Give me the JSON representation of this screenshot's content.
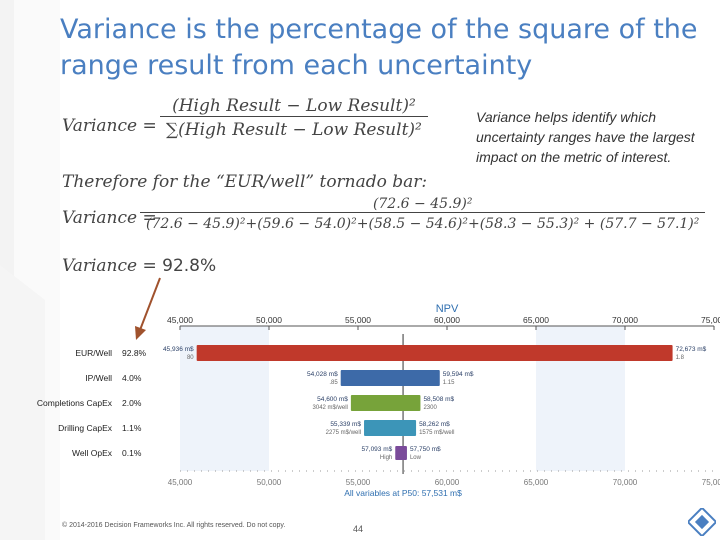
{
  "slide": {
    "title": "Variance is the percentage of the square of the range result from each uncertainty",
    "note": "Variance helps identify which uncertainty ranges have the largest impact on the metric of interest.",
    "eq1_lhs": "Variance =",
    "eq1_num": "(High Result − Low Result)²",
    "eq1_den": "∑(High Result − Low Result)²",
    "eq2": "Therefore for the “EUR/well” tornado bar:",
    "eq3_lhs": "Variance =",
    "eq3_num": "(72.6 − 45.9)²",
    "eq3_den": "(72.6 − 45.9)²+(59.6 − 54.0)²+(58.5 − 54.6)²+(58.3 − 55.3)² + (57.7 − 57.1)²",
    "eq4_lhs": "Variance = ",
    "eq4_val": "92.8%",
    "footer": "© 2014-2016 Decision Frameworks Inc. All rights reserved. Do not copy.",
    "page_number": "44"
  },
  "colors": {
    "title": "#4a7fc1",
    "bar_red": "#c0392b",
    "bar_blue": "#3d6aa8",
    "bar_green": "#77a33a",
    "bar_teal": "#3c95b8",
    "bar_purple": "#7a4b9a",
    "arrow": "#a0522d"
  },
  "chart_data": {
    "type": "bar",
    "title": "NPV",
    "xlim": [
      45000,
      75000
    ],
    "x_ticks": [
      "45,000",
      "50,000",
      "55,000",
      "60,000",
      "65,000",
      "70,000",
      "75,000"
    ],
    "base_value": 57531,
    "base_label": "All variables at P50: 57,531 m$",
    "bars": [
      {
        "name": "EUR/Well",
        "variance": "92.8%",
        "low": 45936,
        "high": 72673,
        "low_label": "45,936 m$",
        "high_label": "72,673 m$",
        "low_sub": "80",
        "high_sub": "1.8"
      },
      {
        "name": "IP/Well",
        "variance": "4.0%",
        "low": 54028,
        "high": 59594,
        "low_label": "54,028 m$",
        "high_label": "59,594 m$",
        "low_sub": ".85",
        "high_sub": "1.15"
      },
      {
        "name": "Completions CapEx",
        "variance": "2.0%",
        "low": 54600,
        "high": 58508,
        "low_label": "54,600 m$",
        "high_label": "58,508 m$",
        "low_sub": "3042 m$/well",
        "high_sub": "2300"
      },
      {
        "name": "Drilling CapEx",
        "variance": "1.1%",
        "low": 55339,
        "high": 58262,
        "low_label": "55,339 m$",
        "high_label": "58,262 m$",
        "low_sub": "2275 m$/well",
        "high_sub": "1575 m$/well"
      },
      {
        "name": "Well OpEx",
        "variance": "0.1%",
        "low": 57093,
        "high": 57750,
        "low_label": "57,093 m$",
        "high_label": "57,750 m$",
        "low_sub": "High",
        "high_sub": "Low"
      }
    ]
  }
}
